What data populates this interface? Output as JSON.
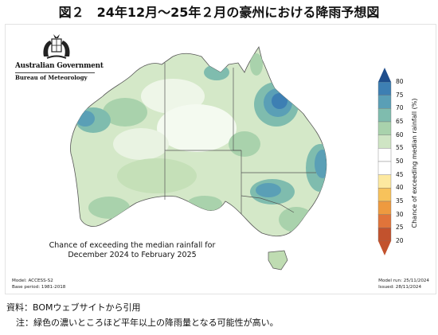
{
  "figure_title": "図２　24年12月～25年２月の豪州における降雨予想図",
  "logo": {
    "government": "Australian Government",
    "bureau": "Bureau of Meteorology"
  },
  "map": {
    "caption_line1": "Chance of exceeding the median rainfall for",
    "caption_line2": "December 2024 to February 2025",
    "model": "Model: ACCESS-S2",
    "base_period": "Base period: 1981-2018",
    "model_run": "Model run: 25/11/2024",
    "issued": "Issued: 28/11/2024"
  },
  "colorbar": {
    "title": "Chance of exceeding median rainfall (%)",
    "ticks": [
      "80",
      "75",
      "70",
      "65",
      "60",
      "55",
      "50",
      "45",
      "40",
      "35",
      "30",
      "25",
      "20"
    ],
    "colors": [
      "#1f4e8c",
      "#3d7fb3",
      "#5a9fb6",
      "#7fbcae",
      "#a9d2ac",
      "#cfe5c4",
      "#ffffff",
      "#ffffff",
      "#fde9a0",
      "#f7c25b",
      "#ee9a3f",
      "#e0743a",
      "#c2522d"
    ]
  },
  "notes": {
    "source": "資料：BOMウェブサイトから引用",
    "remark": "注：緑色の濃いところほど平年以上の降雨量となる可能性が高い。"
  }
}
